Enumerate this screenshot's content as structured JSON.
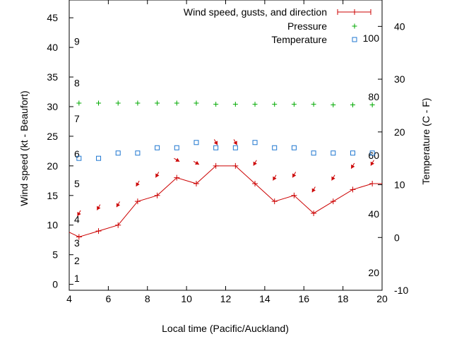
{
  "chart_data": {
    "type": "line",
    "xlabel": "Local time (Pacific/Auckland)",
    "ylabel_left": "Wind speed (kt - Beaufort)",
    "ylabel_right": "Temperature (C - F)",
    "xlim": [
      4,
      20
    ],
    "ylim_left": [
      -1,
      48
    ],
    "ylim_right": [
      -10,
      45
    ],
    "x_ticks": [
      4,
      6,
      8,
      10,
      12,
      14,
      16,
      18,
      20
    ],
    "y_ticks_left": [
      0,
      5,
      10,
      15,
      20,
      25,
      30,
      35,
      40,
      45
    ],
    "y_ticks_right": [
      -10,
      0,
      10,
      20,
      30,
      40
    ],
    "beaufort_labels": [
      {
        "label": "1",
        "value": 1
      },
      {
        "label": "2",
        "value": 4
      },
      {
        "label": "3",
        "value": 7
      },
      {
        "label": "4",
        "value": 11
      },
      {
        "label": "5",
        "value": 17
      },
      {
        "label": "6",
        "value": 22
      },
      {
        "label": "7",
        "value": 28
      },
      {
        "label": "8",
        "value": 34
      },
      {
        "label": "9",
        "value": 41
      }
    ],
    "fahrenheit_labels": [
      {
        "label": "20",
        "value": 20
      },
      {
        "label": "40",
        "value": 40
      },
      {
        "label": "60",
        "value": 60
      },
      {
        "label": "80",
        "value": 80
      },
      {
        "label": "100",
        "value": 100
      }
    ],
    "legend_position": "top-right",
    "series": [
      {
        "name": "Wind speed, gusts, and direction",
        "color": "#cc0000",
        "x": [
          4,
          4.5,
          5.5,
          6.5,
          7.5,
          8.5,
          9.5,
          10.5,
          11.5,
          12.5,
          13.5,
          14.5,
          15.5,
          16.5,
          17.5,
          18.5,
          19.5,
          20
        ],
        "y": [
          8.8,
          8,
          9,
          10,
          14,
          15,
          18,
          17,
          20,
          20,
          17,
          14,
          15,
          12,
          14,
          16,
          17,
          17
        ],
        "gusts": [
          12,
          13,
          13.5,
          17,
          18.5,
          21,
          20.5,
          24,
          24,
          20.5,
          18,
          18.5,
          16,
          18,
          20,
          20.5
        ],
        "gust_x": [
          4.5,
          5.5,
          6.5,
          7.5,
          8.5,
          9.5,
          10.5,
          11.5,
          12.5,
          13.5,
          14.5,
          15.5,
          16.5,
          17.5,
          18.5,
          19.5
        ],
        "direction_deg": [
          30,
          30,
          30,
          30,
          30,
          300,
          300,
          330,
          330,
          30,
          30,
          30,
          30,
          30,
          30,
          30
        ]
      },
      {
        "name": "Pressure",
        "color": "#00aa00",
        "x": [
          4.5,
          5.5,
          6.5,
          7.5,
          8.5,
          9.5,
          10.5,
          11.5,
          12.5,
          13.5,
          14.5,
          15.5,
          16.5,
          17.5,
          18.5,
          19.5
        ],
        "y": [
          30.6,
          30.6,
          30.6,
          30.6,
          30.6,
          30.6,
          30.6,
          30.4,
          30.4,
          30.4,
          30.4,
          30.4,
          30.4,
          30.3,
          30.3,
          30.3
        ]
      },
      {
        "name": "Temperature",
        "color": "#1f77d0",
        "x": [
          4.5,
          5.5,
          6.5,
          7.5,
          8.5,
          9.5,
          10.5,
          11.5,
          12.5,
          13.5,
          14.5,
          15.5,
          16.5,
          17.5,
          18.5,
          19.5
        ],
        "y": [
          15,
          15,
          16,
          16,
          17,
          17,
          18,
          17,
          17,
          18,
          17,
          17,
          16,
          16,
          16,
          16
        ]
      }
    ]
  }
}
